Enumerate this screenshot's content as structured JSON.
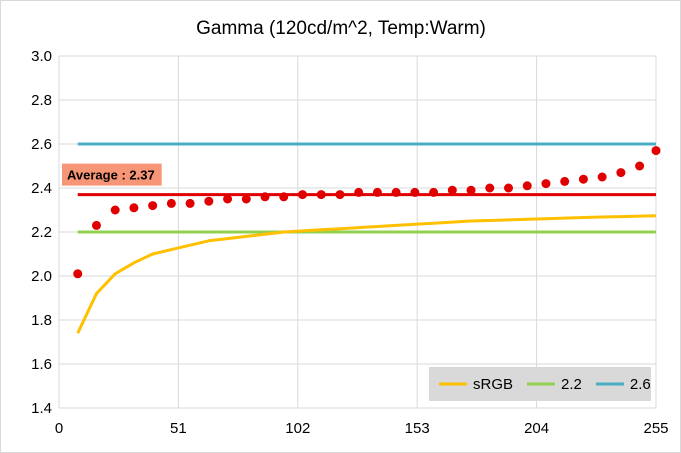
{
  "chart_data": {
    "type": "line",
    "title": "Gamma (120cd/m^2, Temp:Warm)",
    "xlabel": "",
    "ylabel": "",
    "xlim": [
      0,
      255
    ],
    "ylim": [
      1.4,
      3.0
    ],
    "x_ticks": [
      "0",
      "51",
      "102",
      "153",
      "204",
      "255"
    ],
    "y_ticks": [
      "1.4",
      "1.6",
      "1.8",
      "2.0",
      "2.2",
      "2.4",
      "2.6",
      "2.8",
      "3.0"
    ],
    "grid": true,
    "legend_position": "bottom-right",
    "series": [
      {
        "kind": "scatter",
        "color": "#e00000",
        "points": [
          [
            8,
            2.01
          ],
          [
            16,
            2.23
          ],
          [
            24,
            2.3
          ],
          [
            32,
            2.31
          ],
          [
            40,
            2.32
          ],
          [
            48,
            2.33
          ],
          [
            56,
            2.33
          ],
          [
            64,
            2.34
          ],
          [
            72,
            2.35
          ],
          [
            80,
            2.35
          ],
          [
            88,
            2.36
          ],
          [
            96,
            2.36
          ],
          [
            104,
            2.37
          ],
          [
            112,
            2.37
          ],
          [
            120,
            2.37
          ],
          [
            128,
            2.38
          ],
          [
            136,
            2.38
          ],
          [
            144,
            2.38
          ],
          [
            152,
            2.38
          ],
          [
            160,
            2.38
          ],
          [
            168,
            2.39
          ],
          [
            176,
            2.39
          ],
          [
            184,
            2.4
          ],
          [
            192,
            2.4
          ],
          [
            200,
            2.41
          ],
          [
            208,
            2.42
          ],
          [
            216,
            2.43
          ],
          [
            224,
            2.44
          ],
          [
            232,
            2.45
          ],
          [
            240,
            2.47
          ],
          [
            248,
            2.5
          ],
          [
            255,
            2.57
          ]
        ]
      },
      {
        "kind": "line",
        "color": "#e00000",
        "points": [
          [
            0,
            2.37
          ],
          [
            255,
            2.37
          ]
        ]
      },
      {
        "kind": "line",
        "name": "sRGB",
        "color": "#ffc000",
        "points": [
          [
            8,
            1.74
          ],
          [
            16,
            1.92
          ],
          [
            24,
            2.01
          ],
          [
            32,
            2.06
          ],
          [
            40,
            2.1
          ],
          [
            48,
            2.12
          ],
          [
            56,
            2.14
          ],
          [
            64,
            2.16
          ],
          [
            72,
            2.17
          ],
          [
            80,
            2.18
          ],
          [
            88,
            2.19
          ],
          [
            96,
            2.2
          ],
          [
            104,
            2.205
          ],
          [
            112,
            2.21
          ],
          [
            120,
            2.215
          ],
          [
            128,
            2.22
          ],
          [
            136,
            2.225
          ],
          [
            144,
            2.23
          ],
          [
            152,
            2.235
          ],
          [
            160,
            2.24
          ],
          [
            168,
            2.245
          ],
          [
            176,
            2.25
          ],
          [
            184,
            2.252
          ],
          [
            192,
            2.255
          ],
          [
            200,
            2.258
          ],
          [
            208,
            2.26
          ],
          [
            216,
            2.263
          ],
          [
            224,
            2.266
          ],
          [
            232,
            2.268
          ],
          [
            240,
            2.27
          ],
          [
            248,
            2.272
          ],
          [
            255,
            2.274
          ]
        ]
      },
      {
        "kind": "line",
        "name": "2.2",
        "color": "#92d050",
        "points": [
          [
            0,
            2.2
          ],
          [
            255,
            2.2
          ]
        ]
      },
      {
        "kind": "line",
        "name": "2.6",
        "color": "#4bacc6",
        "points": [
          [
            0,
            2.6
          ],
          [
            255,
            2.6
          ]
        ]
      }
    ],
    "annotation": {
      "text": "Average : 2.37",
      "background": "#f79577"
    }
  }
}
